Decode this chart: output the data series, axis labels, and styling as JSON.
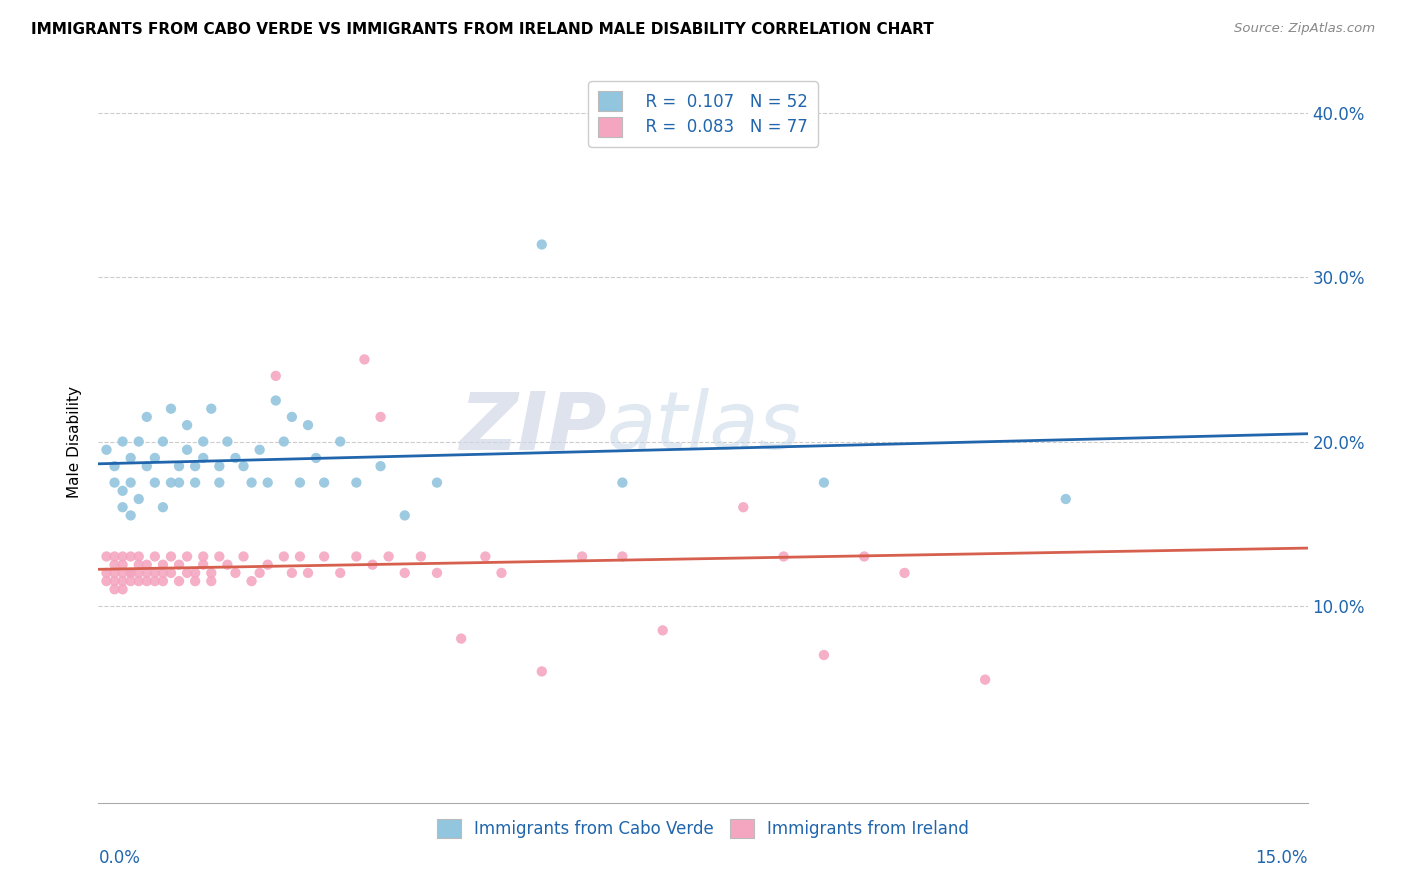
{
  "title": "IMMIGRANTS FROM CABO VERDE VS IMMIGRANTS FROM IRELAND MALE DISABILITY CORRELATION CHART",
  "source": "Source: ZipAtlas.com",
  "ylabel": "Male Disability",
  "xlim": [
    0.0,
    0.15
  ],
  "ylim": [
    -0.02,
    0.42
  ],
  "yticks": [
    0.1,
    0.2,
    0.3,
    0.4
  ],
  "ytick_labels": [
    "10.0%",
    "20.0%",
    "30.0%",
    "40.0%"
  ],
  "color_cabo": "#92c5de",
  "color_ireland": "#f4a6c0",
  "color_line_cabo": "#2166ac",
  "color_line_ireland": "#d6604d",
  "background_color": "#ffffff",
  "cabo_verde_x": [
    0.001,
    0.002,
    0.002,
    0.003,
    0.003,
    0.003,
    0.004,
    0.004,
    0.004,
    0.005,
    0.005,
    0.006,
    0.006,
    0.007,
    0.007,
    0.008,
    0.008,
    0.009,
    0.009,
    0.01,
    0.01,
    0.011,
    0.011,
    0.012,
    0.012,
    0.013,
    0.013,
    0.014,
    0.015,
    0.015,
    0.016,
    0.017,
    0.018,
    0.019,
    0.02,
    0.021,
    0.022,
    0.023,
    0.024,
    0.025,
    0.026,
    0.027,
    0.028,
    0.03,
    0.032,
    0.035,
    0.038,
    0.042,
    0.055,
    0.065,
    0.09,
    0.12
  ],
  "cabo_verde_y": [
    0.195,
    0.175,
    0.185,
    0.16,
    0.17,
    0.2,
    0.155,
    0.175,
    0.19,
    0.165,
    0.2,
    0.185,
    0.215,
    0.175,
    0.19,
    0.16,
    0.2,
    0.175,
    0.22,
    0.185,
    0.175,
    0.195,
    0.21,
    0.185,
    0.175,
    0.2,
    0.19,
    0.22,
    0.185,
    0.175,
    0.2,
    0.19,
    0.185,
    0.175,
    0.195,
    0.175,
    0.225,
    0.2,
    0.215,
    0.175,
    0.21,
    0.19,
    0.175,
    0.2,
    0.175,
    0.185,
    0.155,
    0.175,
    0.32,
    0.175,
    0.175,
    0.165
  ],
  "ireland_x": [
    0.001,
    0.001,
    0.001,
    0.002,
    0.002,
    0.002,
    0.002,
    0.002,
    0.003,
    0.003,
    0.003,
    0.003,
    0.003,
    0.004,
    0.004,
    0.004,
    0.004,
    0.005,
    0.005,
    0.005,
    0.005,
    0.006,
    0.006,
    0.006,
    0.007,
    0.007,
    0.007,
    0.008,
    0.008,
    0.008,
    0.009,
    0.009,
    0.01,
    0.01,
    0.011,
    0.011,
    0.012,
    0.012,
    0.013,
    0.013,
    0.014,
    0.014,
    0.015,
    0.016,
    0.017,
    0.018,
    0.019,
    0.02,
    0.021,
    0.022,
    0.023,
    0.024,
    0.025,
    0.026,
    0.028,
    0.03,
    0.032,
    0.033,
    0.034,
    0.035,
    0.036,
    0.038,
    0.04,
    0.042,
    0.045,
    0.048,
    0.05,
    0.055,
    0.06,
    0.065,
    0.07,
    0.08,
    0.085,
    0.09,
    0.095,
    0.1,
    0.11
  ],
  "ireland_y": [
    0.12,
    0.13,
    0.115,
    0.125,
    0.11,
    0.12,
    0.13,
    0.115,
    0.12,
    0.13,
    0.115,
    0.125,
    0.11,
    0.12,
    0.115,
    0.13,
    0.12,
    0.125,
    0.115,
    0.12,
    0.13,
    0.12,
    0.115,
    0.125,
    0.13,
    0.115,
    0.12,
    0.125,
    0.115,
    0.12,
    0.13,
    0.12,
    0.125,
    0.115,
    0.12,
    0.13,
    0.12,
    0.115,
    0.125,
    0.13,
    0.115,
    0.12,
    0.13,
    0.125,
    0.12,
    0.13,
    0.115,
    0.12,
    0.125,
    0.24,
    0.13,
    0.12,
    0.13,
    0.12,
    0.13,
    0.12,
    0.13,
    0.25,
    0.125,
    0.215,
    0.13,
    0.12,
    0.13,
    0.12,
    0.08,
    0.13,
    0.12,
    0.06,
    0.13,
    0.13,
    0.085,
    0.16,
    0.13,
    0.07,
    0.13,
    0.12,
    0.055
  ]
}
